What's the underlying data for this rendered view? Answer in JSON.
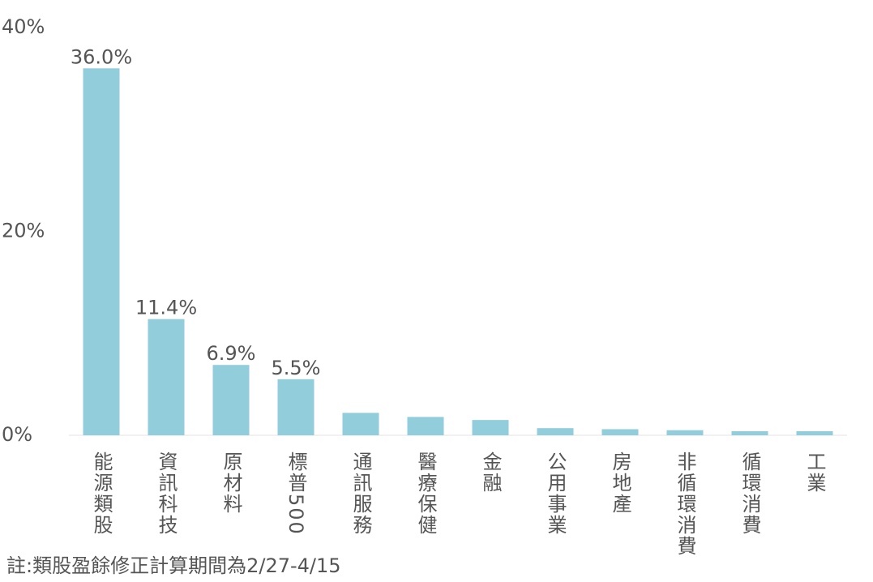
{
  "chart_data": {
    "type": "bar",
    "categories": [
      "能源類股",
      "資訊科技",
      "原材料",
      "標普500",
      "通訊服務",
      "醫療保健",
      "金融",
      "公用事業",
      "房地產",
      "非循環消費",
      "循環消費",
      "工業"
    ],
    "values": [
      36.0,
      11.4,
      6.9,
      5.5,
      2.2,
      1.8,
      1.5,
      0.7,
      0.6,
      0.5,
      0.4,
      0.4
    ],
    "value_labels": [
      "36.0%",
      "11.4%",
      "6.9%",
      "5.5%",
      null,
      null,
      null,
      null,
      null,
      null,
      null,
      null
    ],
    "color": "#92cddc",
    "ylim": [
      0,
      40
    ],
    "yticks": [
      {
        "value": 0,
        "label": "0%"
      },
      {
        "value": 20,
        "label": "20%"
      },
      {
        "value": 40,
        "label": "40%"
      }
    ],
    "grid": false,
    "note": "註:類股盈餘修正計算期間為2/27-4/15"
  }
}
